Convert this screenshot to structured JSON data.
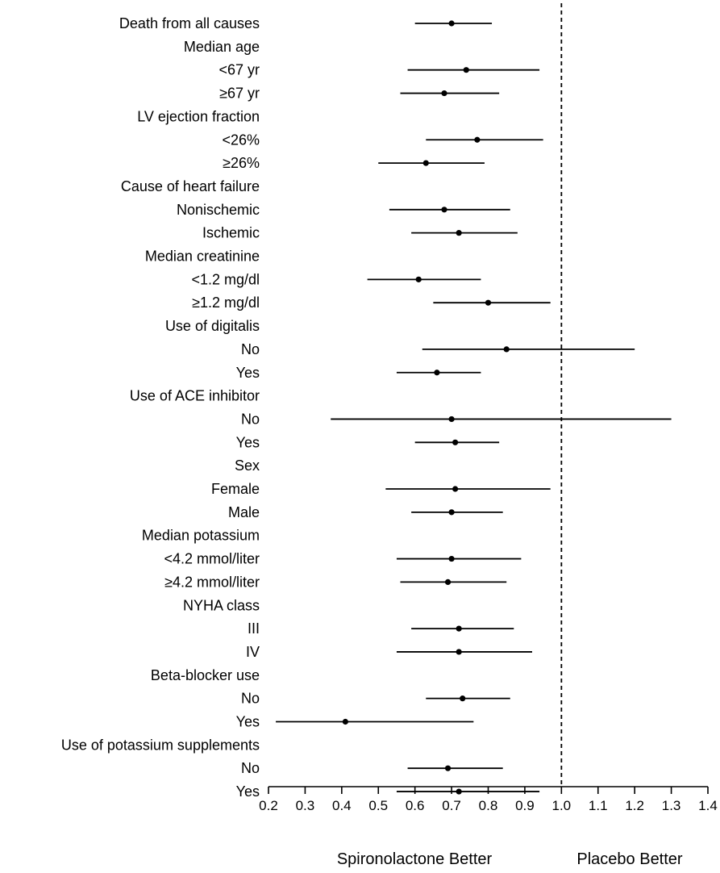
{
  "chart_data": {
    "type": "forest",
    "x_ticks": [
      "0.2",
      "0.3",
      "0.4",
      "0.5",
      "0.6",
      "0.7",
      "0.8",
      "0.9",
      "1.0",
      "1.1",
      "1.2",
      "1.3",
      "1.4"
    ],
    "xlim": [
      0.2,
      1.4
    ],
    "reference_line": 1.0,
    "footer_labels": {
      "left": "Spironolactone Better",
      "right": "Placebo Better"
    },
    "rows": [
      {
        "label": "Death from all causes",
        "point": 0.7,
        "low": 0.6,
        "high": 0.81
      },
      {
        "label": "Median age",
        "header": true
      },
      {
        "label": "<67 yr",
        "point": 0.74,
        "low": 0.58,
        "high": 0.94
      },
      {
        "label": "≥67 yr",
        "point": 0.68,
        "low": 0.56,
        "high": 0.83
      },
      {
        "label": "LV ejection fraction",
        "header": true
      },
      {
        "label": "<26%",
        "point": 0.77,
        "low": 0.63,
        "high": 0.95
      },
      {
        "label": "≥26%",
        "point": 0.63,
        "low": 0.5,
        "high": 0.79
      },
      {
        "label": "Cause of heart failure",
        "header": true
      },
      {
        "label": "Nonischemic",
        "point": 0.68,
        "low": 0.53,
        "high": 0.86
      },
      {
        "label": "Ischemic",
        "point": 0.72,
        "low": 0.59,
        "high": 0.88
      },
      {
        "label": "Median creatinine",
        "header": true
      },
      {
        "label": "<1.2 mg/dl",
        "point": 0.61,
        "low": 0.47,
        "high": 0.78
      },
      {
        "label": "≥1.2 mg/dl",
        "point": 0.8,
        "low": 0.65,
        "high": 0.97
      },
      {
        "label": "Use of digitalis",
        "header": true
      },
      {
        "label": "No",
        "point": 0.85,
        "low": 0.62,
        "high": 1.2
      },
      {
        "label": "Yes",
        "point": 0.66,
        "low": 0.55,
        "high": 0.78
      },
      {
        "label": "Use of ACE inhibitor",
        "header": true
      },
      {
        "label": "No",
        "point": 0.7,
        "low": 0.37,
        "high": 1.3
      },
      {
        "label": "Yes",
        "point": 0.71,
        "low": 0.6,
        "high": 0.83
      },
      {
        "label": "Sex",
        "header": true
      },
      {
        "label": "Female",
        "point": 0.71,
        "low": 0.52,
        "high": 0.97
      },
      {
        "label": "Male",
        "point": 0.7,
        "low": 0.59,
        "high": 0.84
      },
      {
        "label": "Median potassium",
        "header": true
      },
      {
        "label": "<4.2 mmol/liter",
        "point": 0.7,
        "low": 0.55,
        "high": 0.89
      },
      {
        "label": "≥4.2 mmol/liter",
        "point": 0.69,
        "low": 0.56,
        "high": 0.85
      },
      {
        "label": "NYHA class",
        "header": true
      },
      {
        "label": "III",
        "point": 0.72,
        "low": 0.59,
        "high": 0.87
      },
      {
        "label": "IV",
        "point": 0.72,
        "low": 0.55,
        "high": 0.92
      },
      {
        "label": "Beta-blocker use",
        "header": true
      },
      {
        "label": "No",
        "point": 0.73,
        "low": 0.63,
        "high": 0.86
      },
      {
        "label": "Yes",
        "point": 0.41,
        "low": 0.22,
        "high": 0.76
      },
      {
        "label": "Use of potassium supplements",
        "header": true
      },
      {
        "label": "No",
        "point": 0.69,
        "low": 0.58,
        "high": 0.84
      },
      {
        "label": "Yes",
        "point": 0.72,
        "low": 0.55,
        "high": 0.94
      }
    ]
  }
}
